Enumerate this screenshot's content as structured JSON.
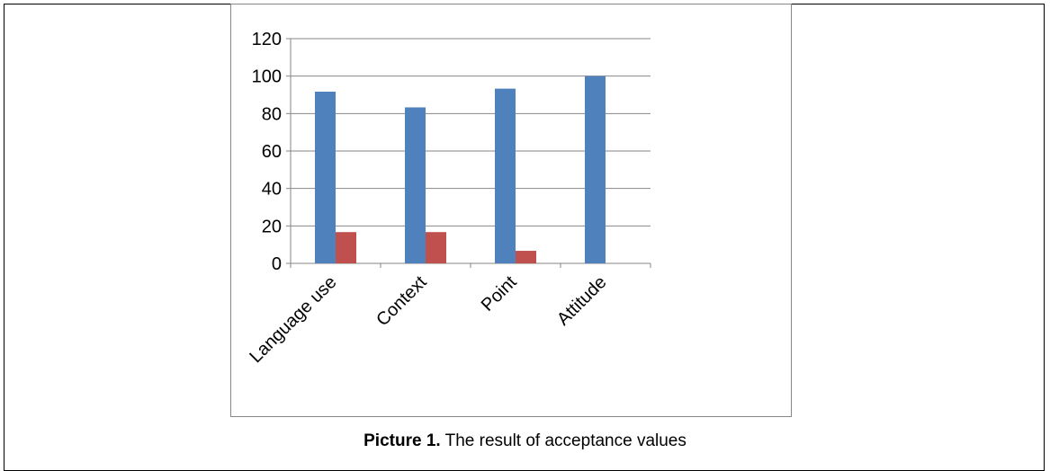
{
  "caption": {
    "label": "Picture 1.",
    "text": "The result of acceptance values"
  },
  "chart_data": {
    "type": "bar",
    "categories": [
      "Language use",
      "Context",
      "Point",
      "Attitude"
    ],
    "series": [
      {
        "values": [
          91.7,
          83.3,
          93.3,
          100
        ],
        "color": "#4F81BD"
      },
      {
        "values": [
          16.7,
          16.7,
          6.7,
          0
        ],
        "color": "#C0504D"
      }
    ],
    "yticks": [
      0,
      20,
      40,
      60,
      80,
      100,
      120
    ],
    "ylim": [
      0,
      120
    ],
    "grid": true,
    "legend": false
  }
}
